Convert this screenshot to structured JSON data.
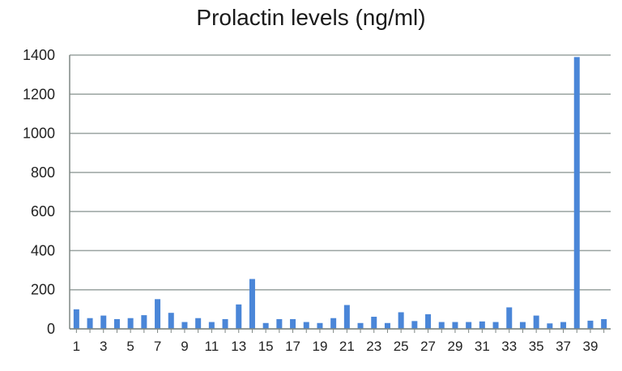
{
  "chart_data": {
    "type": "bar",
    "title": "Prolactin levels (ng/ml)",
    "xlabel": "",
    "ylabel": "",
    "ylim": [
      0,
      1400
    ],
    "yticks": [
      0,
      200,
      400,
      600,
      800,
      1000,
      1200,
      1400
    ],
    "grid": true,
    "legend": "none",
    "bar_color": "#4a86d8",
    "categories": [
      "1",
      "2",
      "3",
      "4",
      "5",
      "6",
      "7",
      "8",
      "9",
      "10",
      "11",
      "12",
      "13",
      "14",
      "15",
      "16",
      "17",
      "18",
      "19",
      "20",
      "21",
      "22",
      "23",
      "24",
      "25",
      "26",
      "27",
      "28",
      "29",
      "30",
      "31",
      "32",
      "33",
      "34",
      "35",
      "36",
      "37",
      "38",
      "39",
      "40"
    ],
    "xtick_labels": [
      "1",
      "3",
      "5",
      "7",
      "9",
      "11",
      "13",
      "15",
      "17",
      "19",
      "21",
      "23",
      "25",
      "27",
      "29",
      "31",
      "33",
      "35",
      "37",
      "39"
    ],
    "values": [
      100,
      55,
      68,
      50,
      55,
      70,
      152,
      82,
      35,
      55,
      35,
      50,
      125,
      255,
      30,
      50,
      50,
      35,
      30,
      55,
      122,
      30,
      62,
      30,
      85,
      40,
      75,
      35,
      35,
      35,
      38,
      35,
      110,
      35,
      68,
      28,
      35,
      1390,
      42,
      50
    ]
  }
}
